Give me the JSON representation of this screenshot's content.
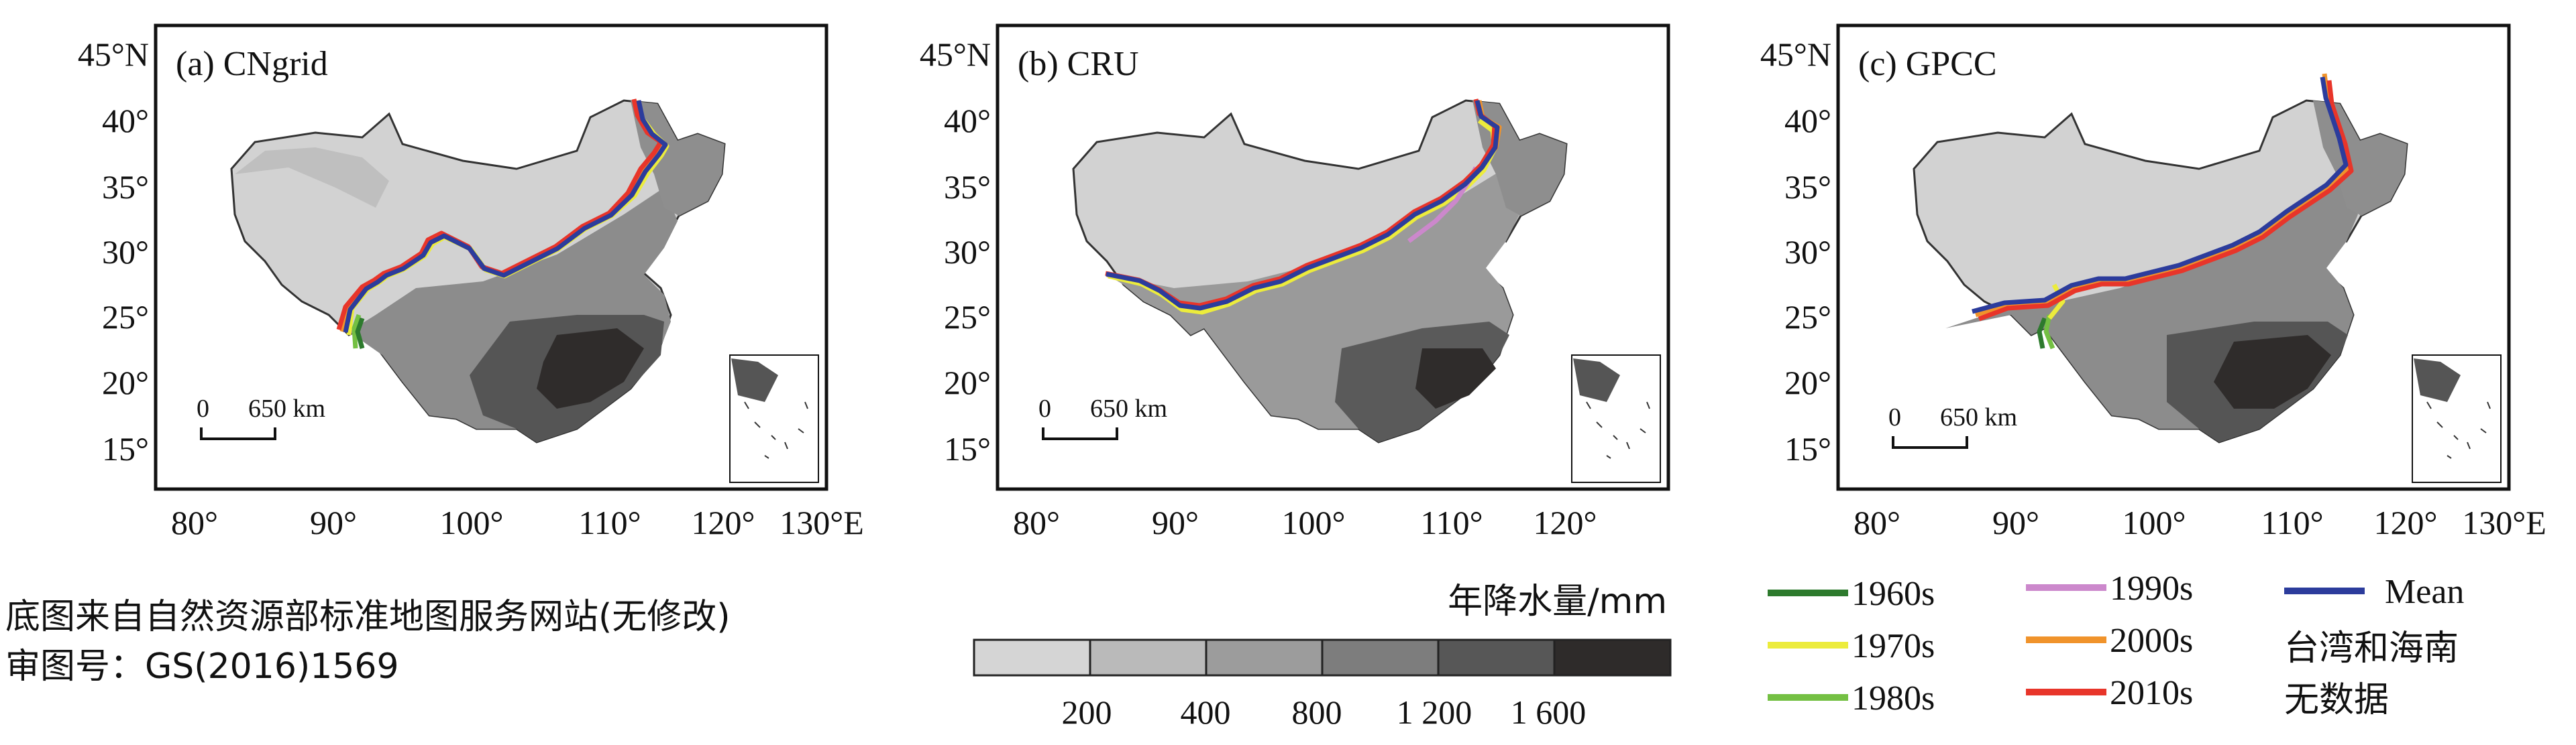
{
  "panels": [
    {
      "label": "(a) CNgrid"
    },
    {
      "label": "(b) CRU"
    },
    {
      "label": "(c) GPCC"
    }
  ],
  "axes": {
    "x_ticks": [
      "80°",
      "90°",
      "100°",
      "110°",
      "120°",
      "130°E"
    ],
    "y_ticks": [
      "45°N",
      "40°",
      "35°",
      "30°",
      "25°",
      "20°",
      "15°"
    ]
  },
  "scale_bar": {
    "start": "0",
    "end": "650 km"
  },
  "source_note": {
    "line1": "底图来自自然资源部标准地图服务网站(无修改)",
    "line2": "审图号：GS(2016)1569"
  },
  "colorbar": {
    "title": "年降水量/mm",
    "ticks": [
      "200",
      "400",
      "800",
      "1 200",
      "1 600"
    ],
    "colors": [
      "#d5d5d5",
      "#bababa",
      "#9c9c9c",
      "#7d7d7d",
      "#575757",
      "#2e2b2a"
    ]
  },
  "legend": {
    "items": [
      {
        "label": "1960s",
        "color": "#2d7a2d"
      },
      {
        "label": "1970s",
        "color": "#ecec3c"
      },
      {
        "label": "1980s",
        "color": "#74c043"
      },
      {
        "label": "1990s",
        "color": "#cc88cc"
      },
      {
        "label": "2000s",
        "color": "#f0932b"
      },
      {
        "label": "2010s",
        "color": "#e8352a"
      },
      {
        "label": "Mean",
        "color": "#2c3c9c"
      }
    ],
    "note_line1": "台湾和海南",
    "note_line2": "无数据"
  }
}
